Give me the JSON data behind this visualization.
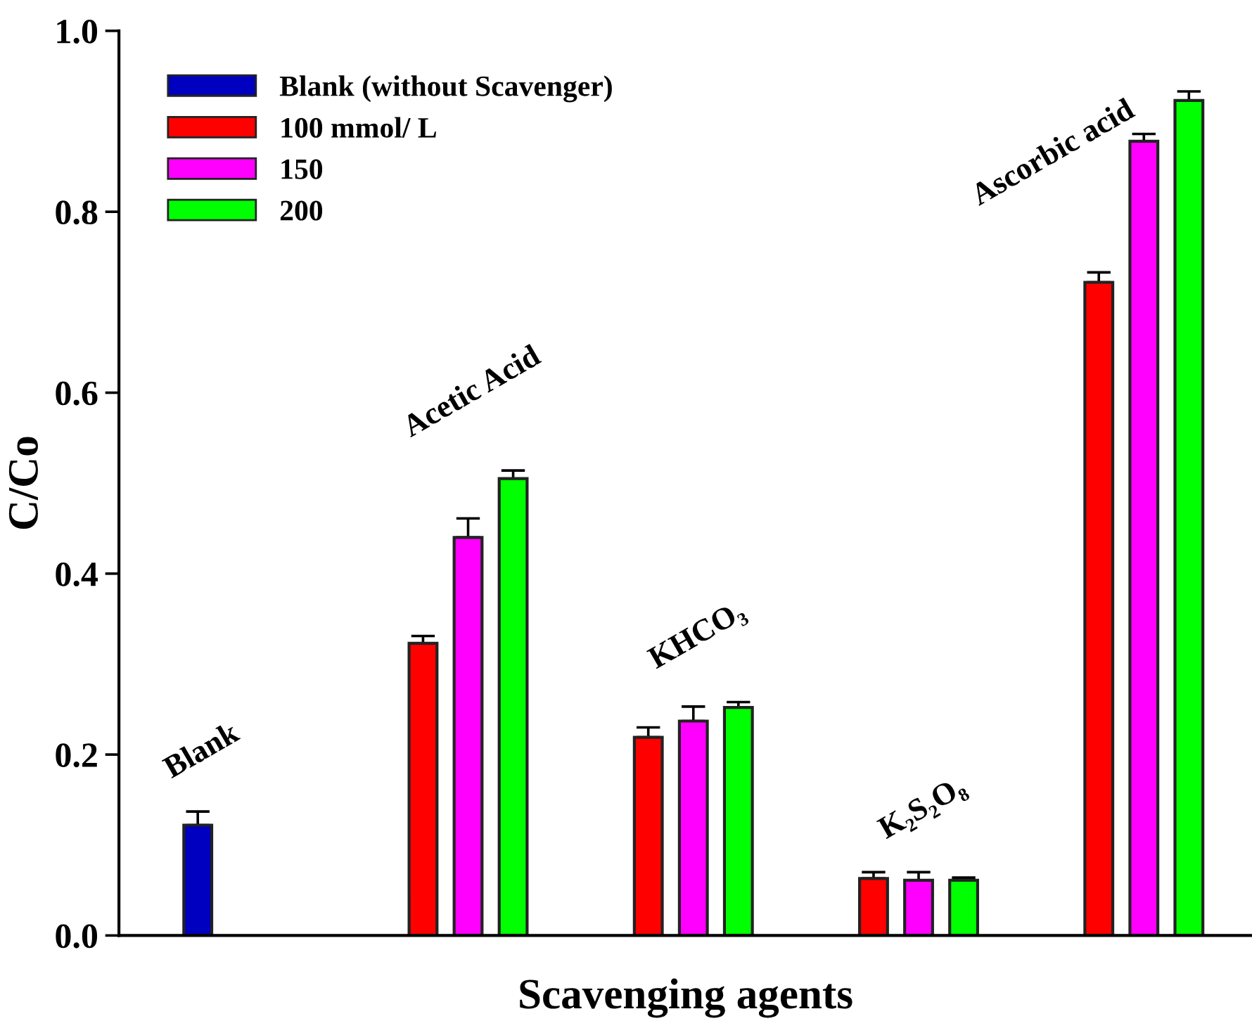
{
  "chart_data": {
    "type": "bar",
    "xlabel": "Scavenging agents",
    "ylabel": "C/Co",
    "categories": [
      "Blank",
      "Acetic Acid",
      "KHCO₃",
      "K₂S₂O₈",
      "Ascorbic acid"
    ],
    "series": [
      {
        "name": "Blank (without Scavenger)",
        "color": "#0000c0",
        "values": [
          0.122,
          null,
          null,
          null,
          null
        ],
        "errors": [
          [
            0.122,
            0.137
          ],
          null,
          null,
          null,
          null
        ]
      },
      {
        "name": "100 mmol/ L",
        "color": "#ff0000",
        "values": [
          null,
          0.323,
          0.219,
          0.063,
          0.722
        ],
        "errors": [
          null,
          [
            0.323,
            0.331
          ],
          [
            0.219,
            0.23
          ],
          [
            0.063,
            0.07
          ],
          [
            0.722,
            0.733
          ]
        ]
      },
      {
        "name": "150",
        "color": "#ff00ff",
        "values": [
          null,
          0.44,
          0.237,
          0.061,
          0.878
        ],
        "errors": [
          null,
          [
            0.44,
            0.461
          ],
          [
            0.237,
            0.253
          ],
          [
            0.061,
            0.07
          ],
          [
            0.878,
            0.886
          ]
        ]
      },
      {
        "name": "200",
        "color": "#00ff00",
        "values": [
          null,
          0.505,
          0.252,
          0.061,
          0.923
        ],
        "errors": [
          null,
          [
            0.505,
            0.514
          ],
          [
            0.252,
            0.258
          ],
          [
            0.061,
            0.064
          ],
          [
            0.923,
            0.933
          ]
        ]
      }
    ],
    "ylim": [
      0,
      1.0
    ],
    "yticks": [
      {
        "value": 0,
        "label": "0.0"
      },
      {
        "value": 0.2,
        "label": "0.2"
      },
      {
        "value": 0.4,
        "label": "0.4"
      },
      {
        "value": 0.6,
        "label": "0.6"
      },
      {
        "value": 0.8,
        "label": "0.8"
      },
      {
        "value": 1.0,
        "label": "1.0"
      }
    ],
    "tick_labels": "y",
    "grid": false,
    "legend": "top left"
  }
}
